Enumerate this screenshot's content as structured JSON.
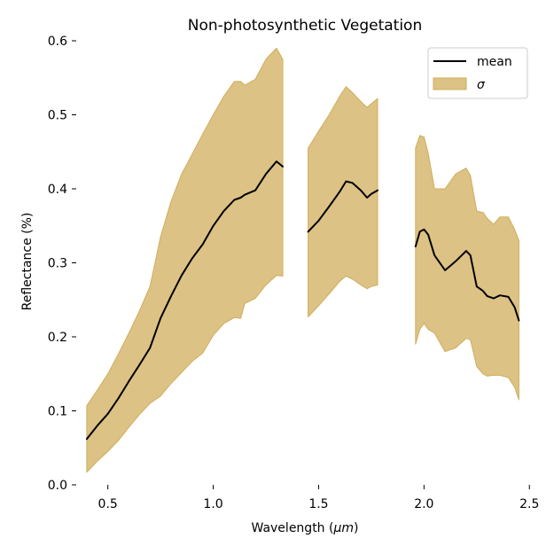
{
  "chart_data": {
    "type": "area",
    "title": "Non-photosynthetic Vegetation",
    "xlabel": "Wavelength (",
    "xlabel_unit": "μm",
    "xlabel_close": ")",
    "ylabel": "Reflectance (%)",
    "xlim": [
      0.35,
      2.52
    ],
    "ylim": [
      0.0,
      0.6
    ],
    "xticks": [
      0.5,
      1.0,
      1.5,
      2.0,
      2.5
    ],
    "xtick_labels": [
      "0.5",
      "1.0",
      "1.5",
      "2.0",
      "2.5"
    ],
    "yticks": [
      0.0,
      0.1,
      0.2,
      0.3,
      0.4,
      0.5,
      0.6
    ],
    "ytick_labels": [
      "0.0",
      "0.1",
      "0.2",
      "0.3",
      "0.4",
      "0.5",
      "0.6"
    ],
    "grid": false,
    "legend_position": "top-right",
    "colors": {
      "mean": "#000000",
      "band_fill": "#dcc284",
      "band_edge": "#cfae5c"
    },
    "series": [
      {
        "name": "mean",
        "kind": "line"
      },
      {
        "name": "σ",
        "kind": "band"
      }
    ],
    "segments": [
      {
        "x": [
          0.4,
          0.45,
          0.5,
          0.55,
          0.6,
          0.65,
          0.7,
          0.75,
          0.8,
          0.85,
          0.9,
          0.95,
          1.0,
          1.05,
          1.1,
          1.13,
          1.15,
          1.2,
          1.25,
          1.3,
          1.33
        ],
        "mean": [
          0.062,
          0.08,
          0.096,
          0.117,
          0.14,
          0.162,
          0.185,
          0.225,
          0.255,
          0.283,
          0.306,
          0.325,
          0.35,
          0.37,
          0.385,
          0.388,
          0.392,
          0.398,
          0.42,
          0.437,
          0.43
        ],
        "upper": [
          0.107,
          0.128,
          0.15,
          0.177,
          0.205,
          0.235,
          0.268,
          0.335,
          0.383,
          0.42,
          0.447,
          0.474,
          0.5,
          0.525,
          0.545,
          0.545,
          0.54,
          0.548,
          0.575,
          0.59,
          0.575
        ],
        "lower": [
          0.017,
          0.032,
          0.045,
          0.06,
          0.078,
          0.095,
          0.11,
          0.12,
          0.137,
          0.152,
          0.167,
          0.178,
          0.202,
          0.218,
          0.226,
          0.225,
          0.245,
          0.252,
          0.27,
          0.283,
          0.282
        ]
      },
      {
        "x": [
          1.45,
          1.5,
          1.55,
          1.6,
          1.63,
          1.66,
          1.7,
          1.73,
          1.75,
          1.78
        ],
        "mean": [
          0.342,
          0.357,
          0.376,
          0.396,
          0.41,
          0.408,
          0.398,
          0.388,
          0.393,
          0.398
        ],
        "upper": [
          0.455,
          0.478,
          0.5,
          0.525,
          0.538,
          0.53,
          0.518,
          0.51,
          0.515,
          0.522
        ],
        "lower": [
          0.227,
          0.242,
          0.258,
          0.275,
          0.282,
          0.278,
          0.27,
          0.265,
          0.268,
          0.27
        ]
      },
      {
        "x": [
          1.96,
          1.98,
          2.0,
          2.02,
          2.05,
          2.1,
          2.15,
          2.2,
          2.22,
          2.25,
          2.28,
          2.3,
          2.33,
          2.36,
          2.4,
          2.43,
          2.45
        ],
        "mean": [
          0.322,
          0.342,
          0.345,
          0.338,
          0.31,
          0.29,
          0.302,
          0.316,
          0.31,
          0.268,
          0.262,
          0.255,
          0.252,
          0.256,
          0.254,
          0.24,
          0.222
        ],
        "upper": [
          0.455,
          0.472,
          0.47,
          0.448,
          0.4,
          0.4,
          0.42,
          0.428,
          0.418,
          0.37,
          0.368,
          0.36,
          0.352,
          0.362,
          0.362,
          0.345,
          0.33
        ],
        "lower": [
          0.19,
          0.21,
          0.218,
          0.21,
          0.205,
          0.18,
          0.185,
          0.198,
          0.196,
          0.16,
          0.15,
          0.147,
          0.148,
          0.148,
          0.145,
          0.132,
          0.115
        ]
      }
    ]
  }
}
